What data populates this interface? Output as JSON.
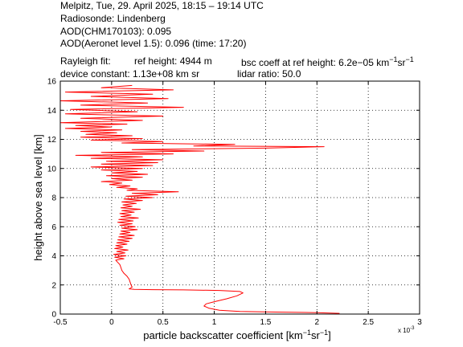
{
  "header": {
    "line1": "Melpitz, Tue, 29. April 2025, 18:15 – 19:14 UTC",
    "line2": "Radiosonde: Lindenberg",
    "line3": "AOD(CHM170103): 0.095",
    "line4": "AOD(Aeronet level 1.5): 0.096   (time: 17:20)",
    "rayleigh_label": "Rayleigh fit:",
    "ref_height": "ref height: 4944 m",
    "bsc_coeff_prefix": "bsc coeff at ref height: 6.2e−05 km",
    "bsc_coeff_sup1": "−1",
    "bsc_coeff_mid": "sr",
    "bsc_coeff_sup2": "−1",
    "device_constant": "device constant: 1.13e+08 km sr",
    "lidar_ratio": "lidar ratio: 50.0"
  },
  "chart_data": {
    "type": "line",
    "xlabel_prefix": "particle backscatter coefficient [km",
    "xlabel_sup1": "−1",
    "xlabel_mid": "sr",
    "xlabel_sup2": "−1",
    "xlabel_suffix": "]",
    "x_multiplier": "x 10",
    "x_multiplier_exp": "-3",
    "ylabel": "height above sea level [km]",
    "xlim": [
      -0.5,
      3
    ],
    "ylim": [
      0,
      16
    ],
    "xticks": [
      -0.5,
      0,
      0.5,
      1,
      1.5,
      2,
      2.5,
      3
    ],
    "xtick_labels": [
      "-0.5",
      "0",
      "0.5",
      "1",
      "1.5",
      "2",
      "2.5",
      "3"
    ],
    "yticks": [
      0,
      2,
      4,
      6,
      8,
      10,
      12,
      14,
      16
    ],
    "ytick_labels": [
      "0",
      "2",
      "4",
      "6",
      "8",
      "10",
      "12",
      "14",
      "16"
    ],
    "grid": true,
    "series": [
      {
        "color": "#ff0000",
        "points": [
          [
            2.22,
            0.05
          ],
          [
            2.0,
            0.1
          ],
          [
            1.6,
            0.14
          ],
          [
            1.25,
            0.18
          ],
          [
            1.05,
            0.26
          ],
          [
            0.95,
            0.4
          ],
          [
            0.9,
            0.55
          ],
          [
            0.92,
            0.7
          ],
          [
            1.0,
            0.85
          ],
          [
            1.12,
            1.05
          ],
          [
            1.22,
            1.25
          ],
          [
            1.28,
            1.45
          ],
          [
            1.25,
            1.55
          ],
          [
            1.05,
            1.62
          ],
          [
            0.7,
            1.66
          ],
          [
            0.4,
            1.68
          ],
          [
            0.22,
            1.7
          ],
          [
            0.17,
            1.73
          ],
          [
            0.18,
            1.76
          ],
          [
            0.2,
            1.85
          ],
          [
            0.19,
            2.0
          ],
          [
            0.18,
            2.2
          ],
          [
            0.17,
            2.4
          ],
          [
            0.15,
            2.6
          ],
          [
            0.12,
            2.8
          ],
          [
            0.1,
            3.0
          ],
          [
            0.09,
            3.2
          ],
          [
            0.08,
            3.4
          ],
          [
            0.06,
            3.55
          ],
          [
            0.04,
            3.7
          ],
          [
            0.12,
            3.8
          ],
          [
            0.03,
            3.9
          ],
          [
            0.14,
            4.0
          ],
          [
            0.02,
            4.1
          ],
          [
            0.13,
            4.2
          ],
          [
            0.05,
            4.3
          ],
          [
            0.16,
            4.4
          ],
          [
            0.03,
            4.5
          ],
          [
            0.11,
            4.6
          ],
          [
            0.04,
            4.7
          ],
          [
            0.15,
            4.8
          ],
          [
            0.05,
            4.9
          ],
          [
            0.17,
            5.0
          ],
          [
            0.06,
            5.1
          ],
          [
            0.2,
            5.2
          ],
          [
            0.07,
            5.3
          ],
          [
            0.22,
            5.4
          ],
          [
            0.08,
            5.5
          ],
          [
            0.18,
            5.6
          ],
          [
            0.09,
            5.7
          ],
          [
            0.25,
            5.8
          ],
          [
            0.1,
            5.9
          ],
          [
            0.23,
            6.0
          ],
          [
            0.08,
            6.1
          ],
          [
            0.2,
            6.2
          ],
          [
            0.06,
            6.3
          ],
          [
            0.21,
            6.4
          ],
          [
            0.07,
            6.5
          ],
          [
            0.26,
            6.6
          ],
          [
            0.09,
            6.7
          ],
          [
            0.19,
            6.8
          ],
          [
            0.08,
            6.9
          ],
          [
            0.22,
            7.0
          ],
          [
            0.1,
            7.1
          ],
          [
            0.28,
            7.2
          ],
          [
            0.09,
            7.3
          ],
          [
            0.2,
            7.4
          ],
          [
            0.11,
            7.5
          ],
          [
            0.24,
            7.6
          ],
          [
            0.1,
            7.7
          ],
          [
            0.3,
            7.8
          ],
          [
            0.12,
            7.9
          ],
          [
            0.4,
            8.0
          ],
          [
            0.14,
            8.1
          ],
          [
            0.45,
            8.2
          ],
          [
            0.2,
            8.3
          ],
          [
            0.65,
            8.4
          ],
          [
            0.15,
            8.5
          ],
          [
            0.25,
            8.6
          ],
          [
            0.05,
            8.7
          ],
          [
            0.18,
            8.8
          ],
          [
            -0.02,
            8.9
          ],
          [
            0.1,
            9.0
          ],
          [
            -0.1,
            9.1
          ],
          [
            0.2,
            9.2
          ],
          [
            0.0,
            9.3
          ],
          [
            0.3,
            9.4
          ],
          [
            -0.05,
            9.5
          ],
          [
            0.35,
            9.6
          ],
          [
            0.0,
            9.7
          ],
          [
            0.25,
            9.8
          ],
          [
            -0.1,
            9.9
          ],
          [
            0.3,
            10.0
          ],
          [
            -0.2,
            10.1
          ],
          [
            0.4,
            10.2
          ],
          [
            -0.1,
            10.3
          ],
          [
            0.45,
            10.4
          ],
          [
            -0.05,
            10.5
          ],
          [
            0.5,
            10.6
          ],
          [
            -0.2,
            10.7
          ],
          [
            0.3,
            10.8
          ],
          [
            -0.35,
            10.9
          ],
          [
            0.6,
            11.0
          ],
          [
            -0.1,
            11.1
          ],
          [
            0.9,
            11.2
          ],
          [
            0.2,
            11.3
          ],
          [
            1.5,
            11.4
          ],
          [
            2.07,
            11.5
          ],
          [
            0.8,
            11.55
          ],
          [
            1.2,
            11.65
          ],
          [
            0.1,
            11.75
          ],
          [
            0.5,
            11.85
          ],
          [
            -0.2,
            11.95
          ],
          [
            0.3,
            12.05
          ],
          [
            -0.3,
            12.15
          ],
          [
            0.2,
            12.25
          ],
          [
            -0.25,
            12.35
          ],
          [
            0.05,
            12.45
          ],
          [
            -0.3,
            12.55
          ],
          [
            0.1,
            12.65
          ],
          [
            -0.45,
            12.75
          ],
          [
            0.0,
            12.85
          ],
          [
            -0.35,
            12.95
          ],
          [
            0.15,
            13.05
          ],
          [
            -0.5,
            13.15
          ],
          [
            0.3,
            13.3
          ],
          [
            -0.3,
            13.45
          ],
          [
            0.5,
            13.6
          ],
          [
            -0.45,
            13.75
          ],
          [
            0.25,
            13.9
          ],
          [
            -0.4,
            14.05
          ],
          [
            0.7,
            14.2
          ],
          [
            -0.3,
            14.35
          ],
          [
            0.35,
            14.5
          ],
          [
            -0.5,
            14.65
          ],
          [
            0.55,
            14.8
          ],
          [
            -0.2,
            14.95
          ],
          [
            0.4,
            15.1
          ],
          [
            -0.45,
            15.25
          ],
          [
            0.6,
            15.4
          ],
          [
            -0.1,
            15.55
          ],
          [
            0.2,
            15.7
          ]
        ]
      }
    ]
  }
}
